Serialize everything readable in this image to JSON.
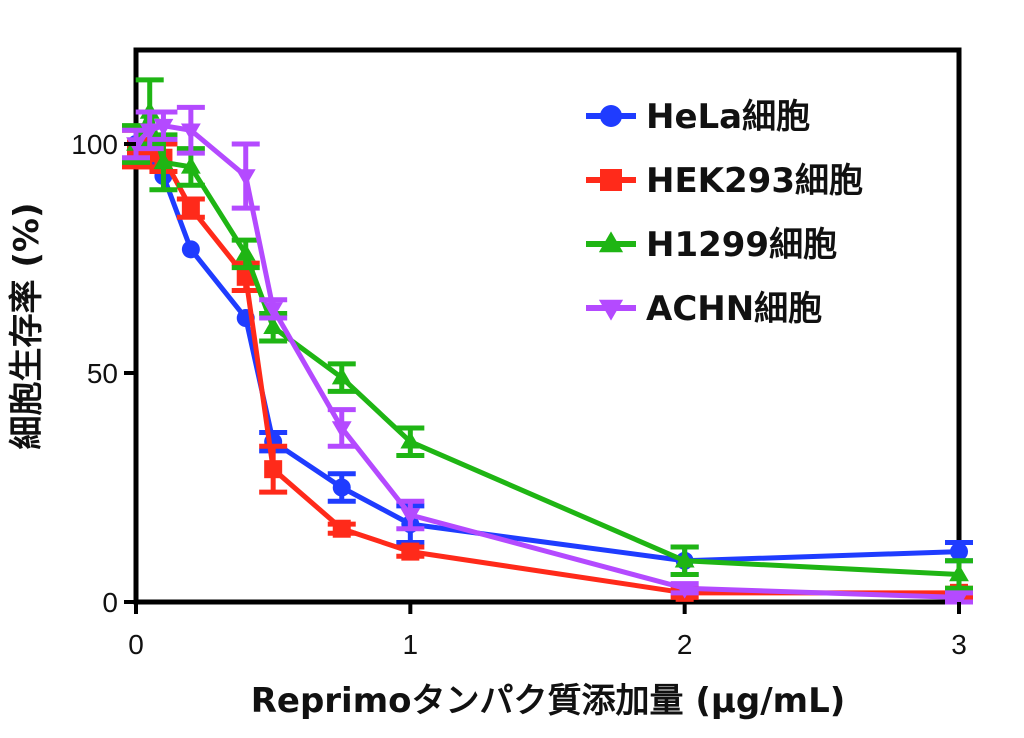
{
  "chart_data": {
    "type": "line",
    "xlabel": "Reprimoタンパク質添加量 (μg/mL)",
    "ylabel": "細胞生存率 (%)",
    "xlim": [
      0,
      3
    ],
    "ylim": [
      0,
      120
    ],
    "xticks": [
      "0",
      "1",
      "2",
      "3"
    ],
    "yticks": [
      "0",
      "50",
      "100"
    ],
    "grid": false,
    "legend_position": "top-right",
    "series": [
      {
        "name": "HeLa細胞",
        "color": "#1f3cff",
        "marker": "circle",
        "x": [
          0,
          0.05,
          0.1,
          0.2,
          0.4,
          0.5,
          0.75,
          1,
          2,
          3
        ],
        "y": [
          100,
          97,
          93,
          77,
          62,
          35,
          25,
          17,
          9,
          11
        ],
        "err": [
          0,
          0,
          0,
          0,
          0,
          2,
          3,
          4,
          3,
          2
        ]
      },
      {
        "name": "HEK293細胞",
        "color": "#ff2a1a",
        "marker": "square",
        "x": [
          0,
          0.05,
          0.1,
          0.2,
          0.4,
          0.5,
          0.75,
          1,
          2,
          3
        ],
        "y": [
          99,
          98,
          97,
          86,
          71,
          29,
          16,
          11,
          2,
          2
        ],
        "err": [
          4,
          3,
          3,
          2,
          3,
          5,
          1,
          1,
          1,
          1
        ]
      },
      {
        "name": "H1299細胞",
        "color": "#1fb514",
        "marker": "triangle-up",
        "x": [
          0,
          0.05,
          0.1,
          0.2,
          0.4,
          0.5,
          0.75,
          1,
          2,
          3
        ],
        "y": [
          100,
          107,
          96,
          95,
          76,
          60,
          49,
          35,
          9,
          6
        ],
        "err": [
          4,
          7,
          6,
          4,
          3,
          3,
          3,
          3,
          3,
          3
        ]
      },
      {
        "name": "ACHN細胞",
        "color": "#b44aff",
        "marker": "triangle-down",
        "x": [
          0,
          0.05,
          0.1,
          0.2,
          0.4,
          0.5,
          0.75,
          1,
          2,
          3
        ],
        "y": [
          100,
          103,
          104,
          103,
          93,
          64,
          38,
          19,
          3,
          1
        ],
        "err": [
          3,
          4,
          3,
          5,
          7,
          2,
          4,
          3,
          1,
          1
        ]
      }
    ]
  }
}
